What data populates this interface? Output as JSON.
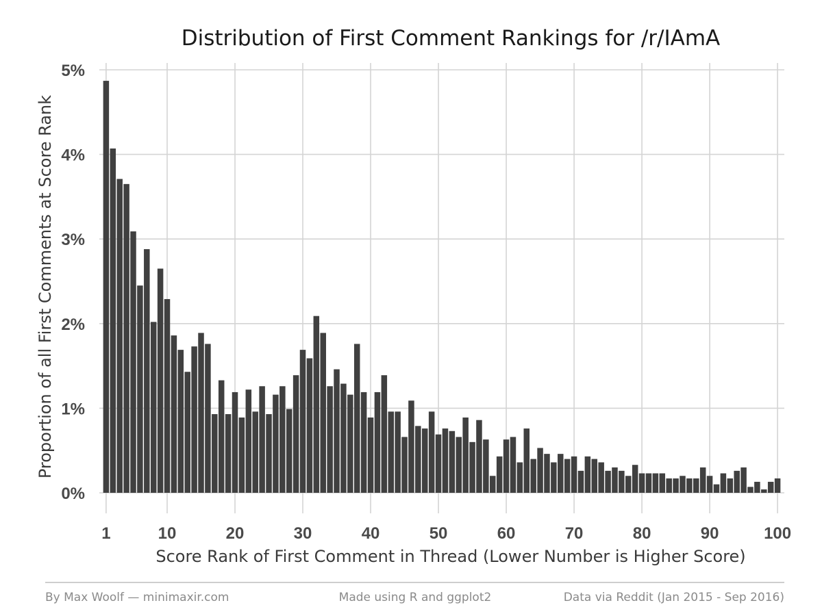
{
  "chart_data": {
    "type": "bar",
    "title": "Distribution of First Comment Rankings for /r/IAmA",
    "xlabel": "Score Rank of First Comment in Thread (Lower Number is Higher Score)",
    "ylabel": "Proportion of all First Comments at Score Rank",
    "x": [
      1,
      2,
      3,
      4,
      5,
      6,
      7,
      8,
      9,
      10,
      11,
      12,
      13,
      14,
      15,
      16,
      17,
      18,
      19,
      20,
      21,
      22,
      23,
      24,
      25,
      26,
      27,
      28,
      29,
      30,
      31,
      32,
      33,
      34,
      35,
      36,
      37,
      38,
      39,
      40,
      41,
      42,
      43,
      44,
      45,
      46,
      47,
      48,
      49,
      50,
      51,
      52,
      53,
      54,
      55,
      56,
      57,
      58,
      59,
      60,
      61,
      62,
      63,
      64,
      65,
      66,
      67,
      68,
      69,
      70,
      71,
      72,
      73,
      74,
      75,
      76,
      77,
      78,
      79,
      80,
      81,
      82,
      83,
      84,
      85,
      86,
      87,
      88,
      89,
      90,
      91,
      92,
      93,
      94,
      95,
      96,
      97,
      98,
      99,
      100
    ],
    "values": [
      4.87,
      4.07,
      3.71,
      3.65,
      3.09,
      2.45,
      2.88,
      2.02,
      2.65,
      2.29,
      1.86,
      1.69,
      1.43,
      1.73,
      1.89,
      1.76,
      0.93,
      1.33,
      0.93,
      1.19,
      0.89,
      1.22,
      0.96,
      1.26,
      0.93,
      1.16,
      1.26,
      0.99,
      1.39,
      1.69,
      1.59,
      2.09,
      1.89,
      1.26,
      1.46,
      1.29,
      1.16,
      1.76,
      1.19,
      0.89,
      1.19,
      1.39,
      0.96,
      0.96,
      0.66,
      1.09,
      0.79,
      0.76,
      0.96,
      0.69,
      0.76,
      0.73,
      0.66,
      0.89,
      0.6,
      0.86,
      0.63,
      0.2,
      0.43,
      0.63,
      0.66,
      0.36,
      0.76,
      0.4,
      0.53,
      0.46,
      0.36,
      0.46,
      0.4,
      0.43,
      0.26,
      0.43,
      0.4,
      0.36,
      0.26,
      0.3,
      0.26,
      0.2,
      0.33,
      0.23,
      0.23,
      0.23,
      0.23,
      0.17,
      0.17,
      0.2,
      0.17,
      0.17,
      0.3,
      0.2,
      0.1,
      0.23,
      0.17,
      0.26,
      0.3,
      0.07,
      0.13,
      0.04,
      0.13,
      0.17
    ],
    "xticks": [
      1,
      10,
      20,
      30,
      40,
      50,
      60,
      70,
      80,
      90,
      100
    ],
    "xtick_labels": [
      "1",
      "10",
      "20",
      "30",
      "40",
      "50",
      "60",
      "70",
      "80",
      "90",
      "100"
    ],
    "yticks": [
      0,
      1,
      2,
      3,
      4,
      5
    ],
    "ytick_labels": [
      "0%",
      "1%",
      "2%",
      "3%",
      "4%",
      "5%"
    ],
    "xlim": [
      0,
      101
    ],
    "ylim": [
      0,
      5
    ],
    "bar_color": "#404040",
    "grid": true,
    "legend": "none"
  },
  "footer": {
    "left": "By Max Woolf — minimaxir.com",
    "center": "Made using R and ggplot2",
    "right": "Data via Reddit (Jan 2015 - Sep 2016)"
  }
}
